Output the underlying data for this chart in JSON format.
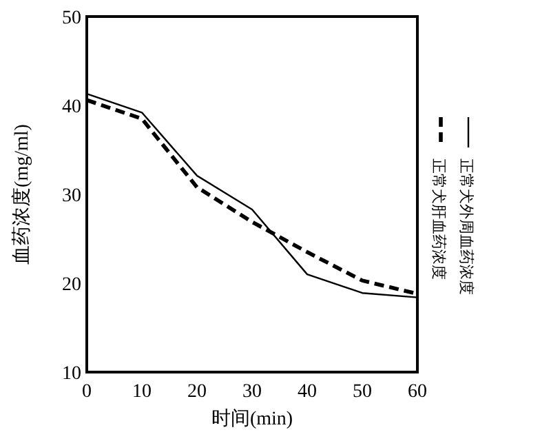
{
  "chart_data": {
    "type": "line",
    "xlabel": "时间(min)",
    "ylabel": "血药浓度(mg/ml)",
    "x": [
      0,
      10,
      20,
      30,
      40,
      50,
      60
    ],
    "series": [
      {
        "name": "正常犬外周血药浓度",
        "color": "#000000",
        "line_style": "solid",
        "values": [
          41.3,
          39.2,
          32.1,
          28.3,
          21.0,
          18.9,
          18.4
        ]
      },
      {
        "name": "正常犬肝血药浓度",
        "color": "#000000",
        "line_style": "dashed",
        "values": [
          40.6,
          38.5,
          30.8,
          26.9,
          23.5,
          20.3,
          18.8
        ]
      }
    ],
    "xlim": [
      0,
      60
    ],
    "ylim": [
      10,
      50
    ],
    "xticks": [
      0,
      10,
      20,
      30,
      40,
      50,
      60
    ],
    "yticks": [
      10,
      20,
      30,
      40,
      50
    ],
    "grid": false,
    "legend": "right",
    "marker": "none"
  }
}
